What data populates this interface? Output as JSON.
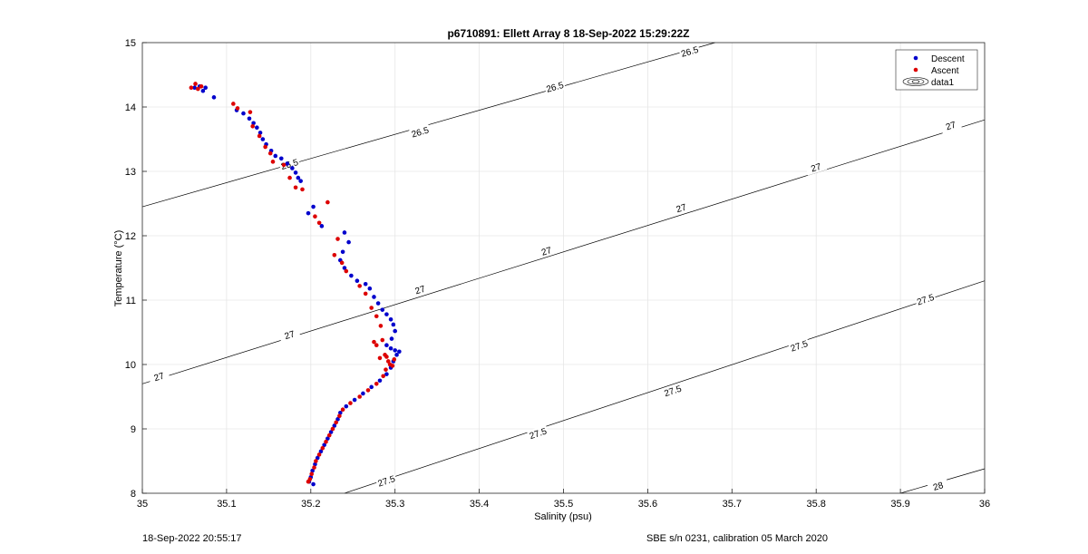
{
  "footer": {
    "timestamp": "18-Sep-2022 20:55:17",
    "calibration": "SBE s/n 0231, calibration 05 March 2020"
  },
  "chart_data": {
    "type": "scatter",
    "title": "p6710891: Ellett Array 8 18-Sep-2022 15:29:22Z",
    "xlabel": "Salinity (psu)",
    "ylabel": "Temperature (°C)",
    "xlim": [
      35,
      36
    ],
    "ylim": [
      8,
      15
    ],
    "xticks": [
      "35",
      "35.1",
      "35.2",
      "35.3",
      "35.4",
      "35.5",
      "35.6",
      "35.7",
      "35.8",
      "35.9",
      "36"
    ],
    "yticks": [
      "8",
      "9",
      "10",
      "11",
      "12",
      "13",
      "14",
      "15"
    ],
    "grid": true,
    "legend": {
      "placement": "top-right",
      "entries": [
        "Descent",
        "Ascent",
        "data1"
      ]
    },
    "colors": {
      "descent": "#0000cc",
      "ascent": "#dd0000",
      "contour": "#000000"
    },
    "contours": [
      {
        "level": "26.5",
        "line": [
          [
            35,
            12.45
          ],
          [
            35.68,
            15
          ]
        ],
        "labels": [
          [
            35.33,
            13.6
          ],
          [
            35.49,
            14.3
          ],
          [
            35.65,
            14.85
          ],
          [
            35.175,
            13.1
          ]
        ]
      },
      {
        "level": "27",
        "line": [
          [
            35,
            9.7
          ],
          [
            36,
            13.8
          ]
        ],
        "labels": [
          [
            35.02,
            9.8
          ],
          [
            35.175,
            10.45
          ],
          [
            35.33,
            11.15
          ],
          [
            35.48,
            11.75
          ],
          [
            35.64,
            12.42
          ],
          [
            35.8,
            13.05
          ],
          [
            35.96,
            13.7
          ]
        ]
      },
      {
        "level": "27.5",
        "line": [
          [
            35.24,
            8
          ],
          [
            36,
            11.3
          ]
        ],
        "labels": [
          [
            35.29,
            8.18
          ],
          [
            35.47,
            8.92
          ],
          [
            35.63,
            9.58
          ],
          [
            35.78,
            10.28
          ],
          [
            35.93,
            11.0
          ]
        ]
      },
      {
        "level": "28",
        "line": [
          [
            35.9,
            8
          ],
          [
            36,
            8.38
          ]
        ],
        "labels": [
          [
            35.945,
            8.1
          ]
        ]
      }
    ],
    "series": [
      {
        "name": "Descent",
        "points": [
          [
            35.062,
            14.3
          ],
          [
            35.068,
            14.32
          ],
          [
            35.075,
            14.3
          ],
          [
            35.072,
            14.25
          ],
          [
            35.085,
            14.15
          ],
          [
            35.112,
            13.95
          ],
          [
            35.12,
            13.9
          ],
          [
            35.127,
            13.82
          ],
          [
            35.132,
            13.75
          ],
          [
            35.136,
            13.68
          ],
          [
            35.14,
            13.6
          ],
          [
            35.143,
            13.5
          ],
          [
            35.147,
            13.42
          ],
          [
            35.153,
            13.32
          ],
          [
            35.158,
            13.24
          ],
          [
            35.165,
            13.2
          ],
          [
            35.172,
            13.12
          ],
          [
            35.178,
            13.05
          ],
          [
            35.182,
            12.98
          ],
          [
            35.185,
            12.9
          ],
          [
            35.188,
            12.85
          ],
          [
            35.197,
            12.35
          ],
          [
            35.203,
            12.45
          ],
          [
            35.213,
            12.15
          ],
          [
            35.24,
            12.05
          ],
          [
            35.245,
            11.9
          ],
          [
            35.238,
            11.75
          ],
          [
            35.235,
            11.62
          ],
          [
            35.24,
            11.5
          ],
          [
            35.248,
            11.38
          ],
          [
            35.255,
            11.3
          ],
          [
            35.265,
            11.25
          ],
          [
            35.27,
            11.18
          ],
          [
            35.275,
            11.05
          ],
          [
            35.28,
            10.95
          ],
          [
            35.285,
            10.85
          ],
          [
            35.29,
            10.78
          ],
          [
            35.295,
            10.7
          ],
          [
            35.298,
            10.62
          ],
          [
            35.3,
            10.52
          ],
          [
            35.296,
            10.4
          ],
          [
            35.29,
            10.3
          ],
          [
            35.295,
            10.25
          ],
          [
            35.3,
            10.22
          ],
          [
            35.305,
            10.2
          ],
          [
            35.302,
            10.15
          ],
          [
            35.298,
            10.05
          ],
          [
            35.295,
            9.95
          ],
          [
            35.29,
            9.85
          ],
          [
            35.282,
            9.75
          ],
          [
            35.272,
            9.65
          ],
          [
            35.262,
            9.55
          ],
          [
            35.252,
            9.45
          ],
          [
            35.242,
            9.35
          ],
          [
            35.235,
            9.25
          ],
          [
            35.232,
            9.15
          ],
          [
            35.228,
            9.05
          ],
          [
            35.224,
            8.95
          ],
          [
            35.22,
            8.85
          ],
          [
            35.216,
            8.75
          ],
          [
            35.212,
            8.65
          ],
          [
            35.208,
            8.55
          ],
          [
            35.205,
            8.45
          ],
          [
            35.202,
            8.35
          ],
          [
            35.2,
            8.25
          ],
          [
            35.198,
            8.18
          ],
          [
            35.203,
            8.14
          ]
        ]
      },
      {
        "name": "Ascent",
        "points": [
          [
            35.058,
            14.3
          ],
          [
            35.063,
            14.36
          ],
          [
            35.066,
            14.28
          ],
          [
            35.07,
            14.32
          ],
          [
            35.108,
            14.05
          ],
          [
            35.113,
            13.98
          ],
          [
            35.128,
            13.92
          ],
          [
            35.131,
            13.7
          ],
          [
            35.139,
            13.55
          ],
          [
            35.146,
            13.38
          ],
          [
            35.152,
            13.28
          ],
          [
            35.155,
            13.15
          ],
          [
            35.168,
            13.1
          ],
          [
            35.175,
            12.9
          ],
          [
            35.182,
            12.75
          ],
          [
            35.19,
            12.72
          ],
          [
            35.205,
            12.3
          ],
          [
            35.22,
            12.52
          ],
          [
            35.21,
            12.2
          ],
          [
            35.232,
            11.95
          ],
          [
            35.228,
            11.7
          ],
          [
            35.237,
            11.58
          ],
          [
            35.242,
            11.45
          ],
          [
            35.258,
            11.22
          ],
          [
            35.265,
            11.1
          ],
          [
            35.272,
            10.88
          ],
          [
            35.278,
            10.75
          ],
          [
            35.283,
            10.6
          ],
          [
            35.275,
            10.35
          ],
          [
            35.278,
            10.3
          ],
          [
            35.285,
            10.38
          ],
          [
            35.288,
            10.15
          ],
          [
            35.282,
            10.1
          ],
          [
            35.29,
            10.12
          ],
          [
            35.292,
            10.05
          ],
          [
            35.294,
            10.0
          ],
          [
            35.297,
            9.98
          ],
          [
            35.299,
            10.08
          ],
          [
            35.289,
            9.92
          ],
          [
            35.286,
            9.82
          ],
          [
            35.278,
            9.7
          ],
          [
            35.268,
            9.6
          ],
          [
            35.258,
            9.5
          ],
          [
            35.247,
            9.4
          ],
          [
            35.238,
            9.3
          ],
          [
            35.234,
            9.2
          ],
          [
            35.23,
            9.1
          ],
          [
            35.226,
            9.0
          ],
          [
            35.222,
            8.9
          ],
          [
            35.218,
            8.8
          ],
          [
            35.214,
            8.7
          ],
          [
            35.21,
            8.6
          ],
          [
            35.206,
            8.5
          ],
          [
            35.204,
            8.4
          ],
          [
            35.201,
            8.3
          ],
          [
            35.199,
            8.22
          ],
          [
            35.197,
            8.18
          ]
        ]
      }
    ]
  }
}
